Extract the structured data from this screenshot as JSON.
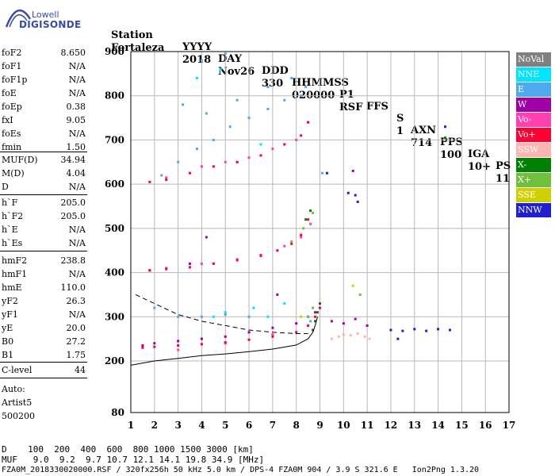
{
  "logo": {
    "top": "Lowell",
    "bottom": "DIGISONDE"
  },
  "header": {
    "line1": [
      "Station",
      "YYYY",
      "DAY",
      "DDD",
      "HHMMSS",
      "P1",
      "FFS",
      "S",
      "AXN",
      "PPS",
      "IGA",
      "PS"
    ],
    "line2": [
      "Fortaleza",
      "2018",
      "Nov26",
      "330",
      "020000",
      "RSF",
      "",
      "1",
      "714",
      "100",
      "10+",
      "11"
    ]
  },
  "params": [
    {
      "label": "foF2",
      "value": "8.650"
    },
    {
      "label": "foF1",
      "value": "N/A"
    },
    {
      "label": "foF1p",
      "value": "N/A"
    },
    {
      "label": "foE",
      "value": "N/A"
    },
    {
      "label": "foEp",
      "value": "0.38"
    },
    {
      "label": "fxI",
      "value": "9.05"
    },
    {
      "label": "foEs",
      "value": "N/A"
    },
    {
      "label": "fmin",
      "value": "1.50"
    },
    {
      "label": "MUF(D)",
      "value": "34.94"
    },
    {
      "label": "M(D)",
      "value": "4.04"
    },
    {
      "label": "D",
      "value": "N/A"
    },
    {
      "label": "h`F",
      "value": "205.0"
    },
    {
      "label": "h`F2",
      "value": "205.0"
    },
    {
      "label": "h`E",
      "value": "N/A"
    },
    {
      "label": "h`Es",
      "value": "N/A"
    },
    {
      "label": "hmF2",
      "value": "238.8"
    },
    {
      "label": "hmF1",
      "value": "N/A"
    },
    {
      "label": "hmE",
      "value": "110.0"
    },
    {
      "label": "yF2",
      "value": "26.3"
    },
    {
      "label": "yF1",
      "value": "N/A"
    },
    {
      "label": "yE",
      "value": "20.0"
    },
    {
      "label": "B0",
      "value": "27.2"
    },
    {
      "label": "B1",
      "value": "1.75"
    },
    {
      "label": "C-level",
      "value": "44"
    }
  ],
  "auto": {
    "line1": "Auto:",
    "line2": "Artist5",
    "line3": "500200"
  },
  "legend": [
    {
      "label": "NoVal",
      "color": "#808080"
    },
    {
      "label": "NNE",
      "color": "#00e5ff"
    },
    {
      "label": "E",
      "color": "#4fa9ee"
    },
    {
      "label": "W",
      "color": "#a000a8"
    },
    {
      "label": "Vo-",
      "color": "#ff40b0"
    },
    {
      "label": "Vo+",
      "color": "#ff0033"
    },
    {
      "label": "SSW",
      "color": "#ffb4b4"
    },
    {
      "label": "X-",
      "color": "#008000"
    },
    {
      "label": "X+",
      "color": "#70c040"
    },
    {
      "label": "SSE",
      "color": "#d0d000"
    },
    {
      "label": "NNW",
      "color": "#2020d0"
    }
  ],
  "footer": {
    "d_row": "D    100  200  400  600  800 1000 1500 3000 [km]",
    "muf_row": "MUF   9.0  9.2  9.7 10.7 12.1 14.1 19.8 34.9 [MHz]",
    "file_row": "FZA0M_2018330020000.RSF / 320fx256h 50 kHz 5.0 km / DPS-4 FZA0M 904 / 3.9 S 321.6 E   Ion2Png 1.3.20"
  },
  "chart_data": {
    "type": "scatter",
    "title": "",
    "xlabel": "",
    "ylabel": "",
    "xlim": [
      1,
      17
    ],
    "ylim": [
      80,
      900
    ],
    "x_ticks": [
      1,
      2,
      3,
      4,
      5,
      6,
      7,
      8,
      9,
      10,
      11,
      12,
      13,
      14,
      15,
      16,
      17
    ],
    "y_ticks": [
      80,
      200,
      300,
      400,
      500,
      600,
      700,
      800,
      900
    ],
    "grid": true,
    "legend_position": "right",
    "series": [
      {
        "name": "NNE",
        "color": "#00e5ff",
        "points": [
          [
            4.5,
            300
          ],
          [
            5,
            310
          ],
          [
            6.2,
            320
          ],
          [
            6.8,
            300
          ],
          [
            7.5,
            330
          ],
          [
            5.5,
            650
          ],
          [
            6.5,
            690
          ],
          [
            3.8,
            840
          ],
          [
            4.8,
            860
          ]
        ]
      },
      {
        "name": "E",
        "color": "#4fa9ee",
        "points": [
          [
            2.3,
            620
          ],
          [
            3,
            650
          ],
          [
            3.8,
            680
          ],
          [
            4.5,
            700
          ],
          [
            5.2,
            730
          ],
          [
            6,
            750
          ],
          [
            6.8,
            770
          ],
          [
            7.5,
            790
          ],
          [
            8.2,
            800
          ],
          [
            9.1,
            625
          ],
          [
            4,
            880
          ],
          [
            5,
            895
          ],
          [
            3.2,
            780
          ],
          [
            4.2,
            760
          ],
          [
            5.5,
            790
          ],
          [
            6.8,
            820
          ],
          [
            7.8,
            840
          ],
          [
            8.4,
            820
          ],
          [
            3,
            300
          ],
          [
            4,
            300
          ],
          [
            5,
            305
          ],
          [
            6,
            300
          ],
          [
            2,
            320
          ],
          [
            8.6,
            290
          ]
        ]
      },
      {
        "name": "W",
        "color": "#a000a8",
        "points": [
          [
            1.5,
            235
          ],
          [
            2,
            240
          ],
          [
            3,
            245
          ],
          [
            4,
            250
          ],
          [
            5,
            255
          ],
          [
            6,
            265
          ],
          [
            7,
            275
          ],
          [
            8,
            285
          ],
          [
            8.5,
            300
          ],
          [
            8.8,
            310
          ],
          [
            9.5,
            290
          ],
          [
            10,
            285
          ],
          [
            10.5,
            295
          ],
          [
            11,
            280
          ],
          [
            10.4,
            630
          ],
          [
            7.2,
            350
          ],
          [
            4.2,
            480
          ],
          [
            1.8,
            405
          ],
          [
            3.5,
            420
          ]
        ]
      },
      {
        "name": "Vo-",
        "color": "#ff40b0",
        "points": [
          [
            2.5,
            410
          ],
          [
            4,
            420
          ],
          [
            5.5,
            430
          ],
          [
            6.5,
            440
          ],
          [
            7.5,
            460
          ],
          [
            8.2,
            480
          ],
          [
            8.6,
            510
          ],
          [
            2.5,
            615
          ],
          [
            4,
            640
          ],
          [
            5,
            650
          ],
          [
            6,
            660
          ],
          [
            7,
            680
          ],
          [
            8,
            700
          ],
          [
            8.5,
            740
          ],
          [
            3,
            225
          ],
          [
            5,
            240
          ],
          [
            7,
            260
          ]
        ]
      },
      {
        "name": "Vo+",
        "color": "#ff0033",
        "points": [
          [
            1.5,
            230
          ],
          [
            2,
            232
          ],
          [
            3,
            235
          ],
          [
            4,
            238
          ],
          [
            5,
            242
          ],
          [
            6,
            248
          ],
          [
            7,
            255
          ],
          [
            8,
            265
          ],
          [
            8.5,
            280
          ],
          [
            8.8,
            300
          ],
          [
            9,
            320
          ],
          [
            1.8,
            405
          ],
          [
            2.5,
            408
          ],
          [
            3.5,
            412
          ],
          [
            4.5,
            420
          ],
          [
            5.5,
            428
          ],
          [
            6.5,
            438
          ],
          [
            7.2,
            450
          ],
          [
            7.8,
            465
          ],
          [
            8.2,
            485
          ],
          [
            8.5,
            520
          ],
          [
            1.8,
            605
          ],
          [
            2.5,
            610
          ],
          [
            3.5,
            625
          ],
          [
            4.5,
            640
          ],
          [
            5.5,
            650
          ],
          [
            6.5,
            665
          ],
          [
            7.5,
            690
          ],
          [
            8.2,
            710
          ],
          [
            8.5,
            740
          ]
        ]
      },
      {
        "name": "SSW",
        "color": "#ffb4b4",
        "points": [
          [
            9.5,
            250
          ],
          [
            9.8,
            255
          ],
          [
            10,
            260
          ],
          [
            10.3,
            258
          ],
          [
            10.6,
            262
          ],
          [
            10.9,
            255
          ],
          [
            11.1,
            250
          ]
        ]
      },
      {
        "name": "X-",
        "color": "#008000",
        "points": [
          [
            8.7,
            270
          ],
          [
            8.8,
            290
          ],
          [
            8.9,
            310
          ],
          [
            9,
            330
          ],
          [
            8.4,
            520
          ],
          [
            8.6,
            540
          ],
          [
            14.3,
            705
          ]
        ]
      },
      {
        "name": "X+",
        "color": "#70c040",
        "points": [
          [
            8.5,
            300
          ],
          [
            8.7,
            320
          ],
          [
            7.8,
            470
          ],
          [
            8.3,
            500
          ],
          [
            8.7,
            535
          ],
          [
            10.7,
            350
          ]
        ]
      },
      {
        "name": "SSE",
        "color": "#d0d000",
        "points": [
          [
            10.4,
            370
          ],
          [
            8.2,
            300
          ]
        ]
      },
      {
        "name": "NNW",
        "color": "#2020d0",
        "points": [
          [
            12,
            270
          ],
          [
            12.5,
            268
          ],
          [
            13,
            272
          ],
          [
            13.5,
            268
          ],
          [
            14,
            272
          ],
          [
            14.5,
            270
          ],
          [
            12.3,
            250
          ],
          [
            14.3,
            730
          ],
          [
            10.2,
            580
          ],
          [
            10.5,
            575
          ],
          [
            10.6,
            560
          ],
          [
            9.3,
            625
          ]
        ]
      }
    ],
    "profile_curves": [
      {
        "name": "true-height",
        "style": "solid",
        "points": [
          [
            1,
            190
          ],
          [
            2,
            200
          ],
          [
            3,
            206
          ],
          [
            4,
            212
          ],
          [
            5,
            216
          ],
          [
            6,
            221
          ],
          [
            7,
            227
          ],
          [
            8,
            236
          ],
          [
            8.5,
            250
          ],
          [
            8.7,
            265
          ],
          [
            8.8,
            280
          ],
          [
            8.9,
            300
          ]
        ]
      },
      {
        "name": "model",
        "style": "dashed",
        "points": [
          [
            1.2,
            350
          ],
          [
            2,
            330
          ],
          [
            3,
            305
          ],
          [
            4,
            290
          ],
          [
            5,
            280
          ],
          [
            6,
            270
          ],
          [
            7,
            265
          ],
          [
            8,
            262
          ],
          [
            8.5,
            262
          ]
        ]
      }
    ]
  }
}
